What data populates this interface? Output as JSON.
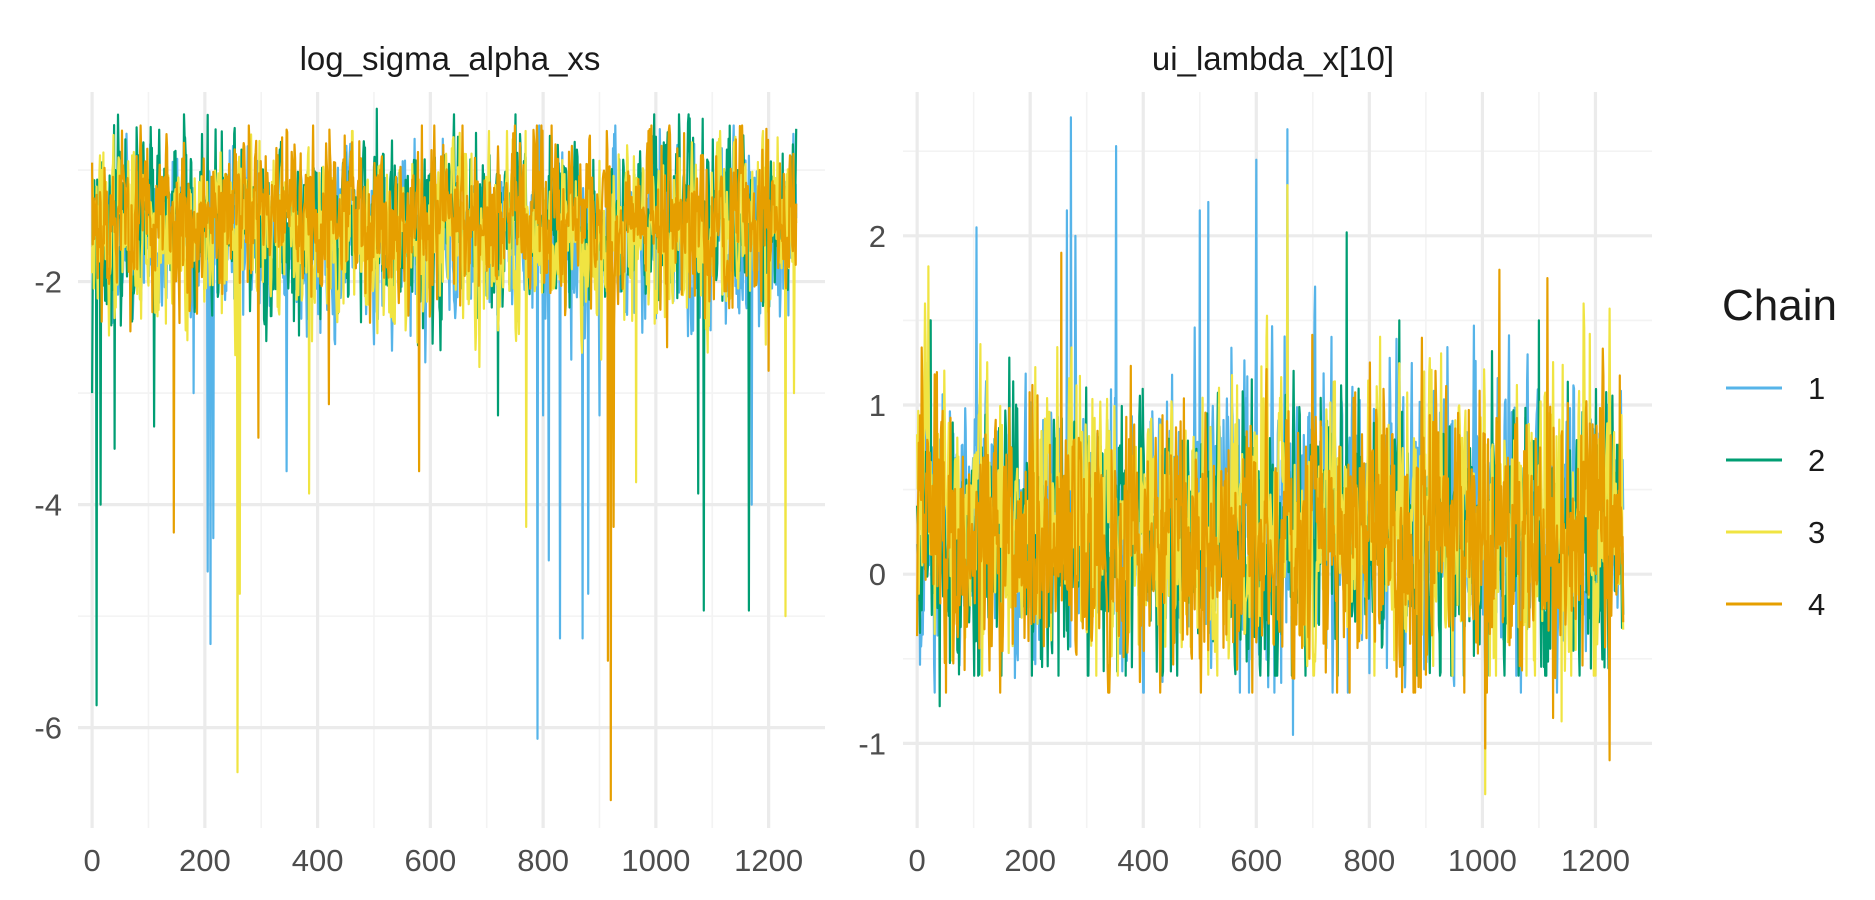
{
  "chart_data": [
    {
      "type": "line",
      "title": "log_sigma_alpha_xs",
      "xlabel": "",
      "ylabel": "",
      "xlim": [
        -25,
        1300
      ],
      "ylim": [
        -6.9,
        -0.3
      ],
      "x_ticks": [
        0,
        200,
        400,
        600,
        800,
        1000,
        1200
      ],
      "x_tick_labels": [
        "0",
        "200",
        "400",
        "600",
        "800",
        "1000",
        "1200"
      ],
      "y_ticks": [
        -6,
        -4,
        -2
      ],
      "y_tick_labels": [
        "-6",
        "-4",
        "-2"
      ],
      "grid": true,
      "n_iterations": 1250,
      "series": [
        {
          "name": "1",
          "color": "#56B4E9",
          "center": -1.6,
          "spread": 0.32,
          "low_clip": -2.9,
          "high_clip": -0.6,
          "seed": 11,
          "spikes": [
            [
              180,
              -3.0
            ],
            [
              205,
              -4.6
            ],
            [
              210,
              -5.25
            ],
            [
              215,
              -4.3
            ],
            [
              345,
              -3.7
            ],
            [
              790,
              -6.1
            ],
            [
              800,
              -3.2
            ],
            [
              810,
              -4.5
            ],
            [
              830,
              -5.2
            ],
            [
              850,
              -2.7
            ],
            [
              870,
              -5.2
            ],
            [
              880,
              -4.8
            ],
            [
              900,
              -3.2
            ],
            [
              1170,
              -4.0
            ]
          ]
        },
        {
          "name": "2",
          "color": "#009E73",
          "center": -1.5,
          "spread": 0.34,
          "low_clip": -3.1,
          "high_clip": -0.5,
          "seed": 23,
          "spikes": [
            [
              0,
              -3.0
            ],
            [
              8,
              -5.8
            ],
            [
              15,
              -4.0
            ],
            [
              40,
              -3.5
            ],
            [
              110,
              -3.3
            ],
            [
              505,
              -0.45
            ],
            [
              720,
              -3.2
            ],
            [
              1075,
              -3.9
            ],
            [
              1085,
              -4.95
            ],
            [
              1165,
              -4.95
            ]
          ]
        },
        {
          "name": "3",
          "color": "#F0E442",
          "center": -1.55,
          "spread": 0.34,
          "low_clip": -3.0,
          "high_clip": -0.65,
          "seed": 37,
          "spikes": [
            [
              258,
              -6.4
            ],
            [
              262,
              -4.8
            ],
            [
              385,
              -3.9
            ],
            [
              770,
              -4.2
            ],
            [
              965,
              -3.8
            ],
            [
              1230,
              -5.0
            ],
            [
              1245,
              -3.0
            ]
          ]
        },
        {
          "name": "4",
          "color": "#E69F00",
          "center": -1.4,
          "spread": 0.33,
          "low_clip": -2.9,
          "high_clip": -0.6,
          "seed": 53,
          "spikes": [
            [
              145,
              -4.25
            ],
            [
              295,
              -3.4
            ],
            [
              420,
              -3.1
            ],
            [
              580,
              -3.7
            ],
            [
              915,
              -5.4
            ],
            [
              920,
              -6.65
            ],
            [
              925,
              -4.2
            ],
            [
              1200,
              -2.8
            ]
          ]
        }
      ]
    },
    {
      "type": "line",
      "title": "ui_lambda_x[10]",
      "xlabel": "",
      "ylabel": "",
      "xlim": [
        -25,
        1300
      ],
      "ylim": [
        -1.5,
        2.85
      ],
      "x_ticks": [
        0,
        200,
        400,
        600,
        800,
        1000,
        1200
      ],
      "x_tick_labels": [
        "0",
        "200",
        "400",
        "600",
        "800",
        "1000",
        "1200"
      ],
      "y_ticks": [
        -1,
        0,
        1,
        2
      ],
      "y_tick_labels": [
        "-1",
        "0",
        "1",
        "2"
      ],
      "grid": true,
      "n_iterations": 1250,
      "series": [
        {
          "name": "1",
          "color": "#56B4E9",
          "center": 0.3,
          "spread": 0.38,
          "low_clip": -0.7,
          "high_clip": 1.7,
          "seed": 71,
          "spikes": [
            [
              105,
              2.05
            ],
            [
              265,
              2.15
            ],
            [
              272,
              2.7
            ],
            [
              280,
              2.0
            ],
            [
              352,
              2.53
            ],
            [
              500,
              2.15
            ],
            [
              515,
              2.2
            ],
            [
              600,
              2.45
            ],
            [
              655,
              2.63
            ],
            [
              665,
              -0.95
            ],
            [
              1060,
              -0.6
            ],
            [
              1250,
              -0.5
            ]
          ]
        },
        {
          "name": "2",
          "color": "#009E73",
          "center": 0.2,
          "spread": 0.36,
          "low_clip": -0.6,
          "high_clip": 1.5,
          "seed": 83,
          "spikes": [
            [
              40,
              -0.78
            ],
            [
              760,
              2.02
            ],
            [
              380,
              -0.55
            ],
            [
              1100,
              1.5
            ]
          ]
        },
        {
          "name": "3",
          "color": "#F0E442",
          "center": 0.3,
          "spread": 0.37,
          "low_clip": -0.6,
          "high_clip": 1.6,
          "seed": 97,
          "spikes": [
            [
              20,
              1.82
            ],
            [
              655,
              2.3
            ],
            [
              1005,
              -1.3
            ],
            [
              1140,
              -0.87
            ],
            [
              1190,
              1.42
            ]
          ]
        },
        {
          "name": "4",
          "color": "#E69F00",
          "center": 0.2,
          "spread": 0.36,
          "low_clip": -0.7,
          "high_clip": 1.6,
          "seed": 113,
          "spikes": [
            [
              255,
              1.9
            ],
            [
              1005,
              -1.03
            ],
            [
              1125,
              -0.85
            ],
            [
              1225,
              -1.1
            ],
            [
              1030,
              1.8
            ],
            [
              1115,
              1.75
            ]
          ]
        }
      ]
    }
  ],
  "legend": {
    "title": "Chain",
    "placement": "right",
    "items": [
      {
        "label": "1",
        "color": "#56B4E9"
      },
      {
        "label": "2",
        "color": "#009E73"
      },
      {
        "label": "3",
        "color": "#F0E442"
      },
      {
        "label": "4",
        "color": "#E69F00"
      }
    ]
  }
}
